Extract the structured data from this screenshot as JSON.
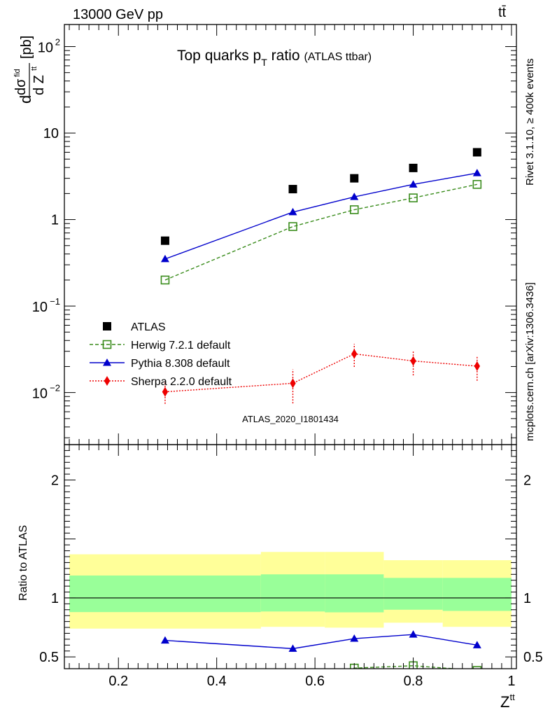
{
  "header": {
    "left": "13000 GeV pp",
    "right": "tt̄"
  },
  "side_labels": {
    "rivet": "Rivet 3.1.10, ≥ 400k events",
    "mcplots": "mcplots.cern.ch [arXiv:1306.3436]"
  },
  "chart_data": [
    {
      "type": "line",
      "panel": "main",
      "title": "Top quarks p",
      "title_sub": "T",
      "title_rest": " ratio",
      "title_small": "(ATLAS ttbar)",
      "ylabel_parts": [
        "d",
        "dσ",
        "fid",
        "d Z",
        "tt",
        "[pb]"
      ],
      "yscale": "log",
      "ylim": [
        0.0025,
        180
      ],
      "xlim": [
        0.09,
        1.01
      ],
      "yticks": [
        {
          "v": 100,
          "base": "10",
          "exp": "2"
        },
        {
          "v": 10,
          "base": "10",
          "exp": ""
        },
        {
          "v": 1,
          "base": "1",
          "exp": ""
        },
        {
          "v": 0.1,
          "base": "10",
          "exp": "−1"
        },
        {
          "v": 0.01,
          "base": "10",
          "exp": "−2"
        }
      ],
      "watermark": "ATLAS_2020_I1801434",
      "legend_position": "lower-left",
      "series": [
        {
          "name": "ATLAS",
          "style": "data",
          "color": "#000000",
          "x": [
            0.295,
            0.555,
            0.68,
            0.8,
            0.93
          ],
          "y": [
            0.57,
            2.25,
            3.0,
            3.95,
            6.0
          ]
        },
        {
          "name": "Herwig 7.2.1 default",
          "style": "dashed-open-square",
          "color": "#3a8c1c",
          "x": [
            0.295,
            0.555,
            0.68,
            0.8,
            0.93
          ],
          "y": [
            0.2,
            0.83,
            1.3,
            1.78,
            2.55
          ]
        },
        {
          "name": "Pythia 8.308 default",
          "style": "solid-triangle",
          "color": "#0000cc",
          "x": [
            0.295,
            0.555,
            0.68,
            0.8,
            0.93
          ],
          "y": [
            0.35,
            1.22,
            1.83,
            2.55,
            3.45
          ]
        },
        {
          "name": "Sherpa 2.2.0 default",
          "style": "dotted-diamond",
          "color": "#ee0000",
          "x": [
            0.295,
            0.555,
            0.68,
            0.8,
            0.93
          ],
          "y": [
            0.0102,
            0.0128,
            0.028,
            0.0232,
            0.0202
          ],
          "ylo": [
            0.0074,
            0.0075,
            0.0198,
            0.0158,
            0.0137
          ],
          "yhi": [
            0.0135,
            0.0185,
            0.0365,
            0.0305,
            0.0268
          ]
        }
      ]
    },
    {
      "type": "line",
      "panel": "ratio",
      "ylabel": "Ratio to ATLAS",
      "xlabel": "Z",
      "xlabel_sup": "tt",
      "ylim": [
        0.4,
        2.3
      ],
      "xlim": [
        0.09,
        1.01
      ],
      "yticks": [
        0.5,
        1,
        2
      ],
      "ytick_labels": [
        "0.5",
        "1",
        "2"
      ],
      "xticks": [
        0.2,
        0.4,
        0.6,
        0.8,
        1
      ],
      "xtick_labels": [
        "0.2",
        "0.4",
        "0.6",
        "0.8",
        "1"
      ],
      "reference": 1,
      "bands": [
        {
          "x0": 0.1,
          "x1": 0.49,
          "yellow": [
            0.74,
            1.37
          ],
          "green": [
            0.88,
            1.19
          ]
        },
        {
          "x0": 0.49,
          "x1": 0.62,
          "yellow": [
            0.755,
            1.39
          ],
          "green": [
            0.885,
            1.2
          ]
        },
        {
          "x0": 0.62,
          "x1": 0.74,
          "yellow": [
            0.748,
            1.39
          ],
          "green": [
            0.878,
            1.2
          ]
        },
        {
          "x0": 0.74,
          "x1": 0.86,
          "yellow": [
            0.79,
            1.32
          ],
          "green": [
            0.9,
            1.17
          ]
        },
        {
          "x0": 0.86,
          "x1": 1.0,
          "yellow": [
            0.755,
            1.32
          ],
          "green": [
            0.89,
            1.17
          ]
        }
      ],
      "band_colors": {
        "yellow": "#ffff99",
        "green": "#99ff99"
      },
      "series": [
        {
          "name": "Pythia 8.308 default",
          "color": "#0000cc",
          "style": "solid-triangle",
          "x": [
            0.295,
            0.555,
            0.68,
            0.8,
            0.93
          ],
          "y": [
            0.64,
            0.57,
            0.655,
            0.69,
            0.6
          ],
          "err": [
            0.025,
            0.025,
            0.022,
            0.018,
            0.012
          ]
        },
        {
          "name": "Herwig 7.2.1 default",
          "color": "#3a8c1c",
          "style": "dashed-open-square",
          "x": [
            0.6,
            0.68,
            0.8,
            0.93
          ],
          "y": [
            0.34,
            0.405,
            0.425,
            0.385
          ],
          "err": [
            0,
            0,
            0,
            0
          ]
        }
      ]
    }
  ]
}
